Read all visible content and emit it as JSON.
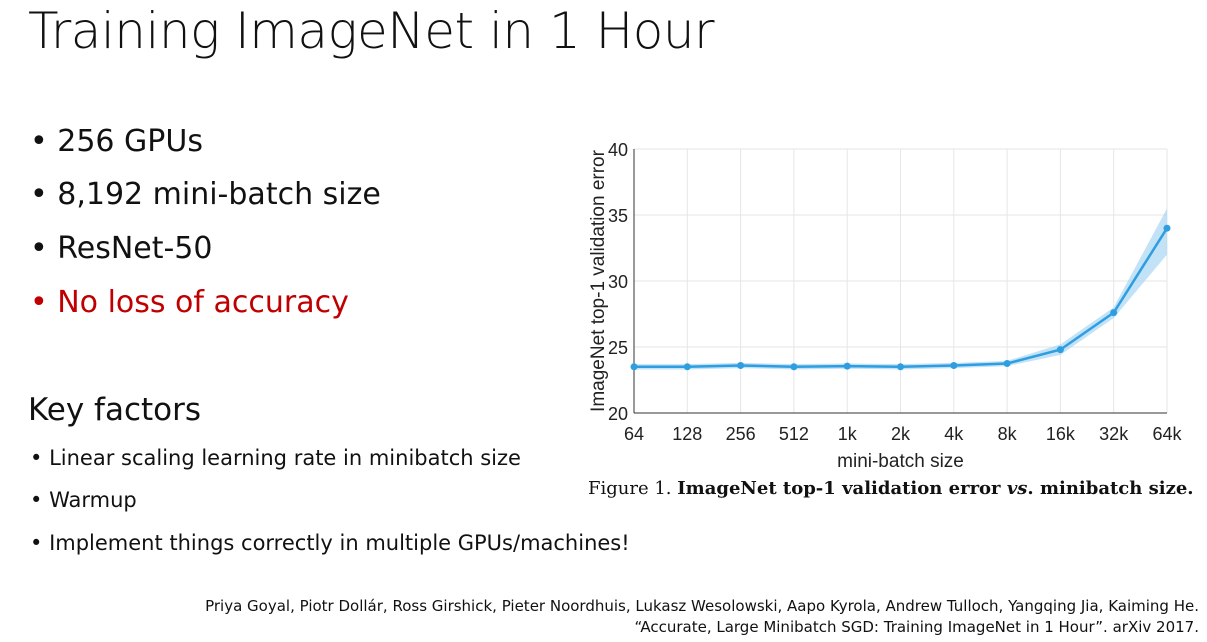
{
  "title": "Training ImageNet in 1 Hour",
  "bullets": [
    "256 GPUs",
    "8,192 mini-batch size",
    "ResNet-50",
    "No loss of accuracy"
  ],
  "highlight_color": "#c00000",
  "key_factors": {
    "heading": "Key factors",
    "items": [
      "Linear scaling learning rate in minibatch size",
      "Warmup",
      "Implement things correctly in multiple GPUs/machines!"
    ]
  },
  "caption": {
    "prefix": "Figure 1. ",
    "bold": "ImageNet top-1 validation error ",
    "italic": "vs",
    "suffix": ". minibatch size."
  },
  "footer": {
    "authors": "Priya Goyal, Piotr Dollár, Ross Girshick, Pieter Noordhuis, Lukasz Wesolowski, Aapo Kyrola, Andrew Tulloch, Yangqing Jia, Kaiming He.",
    "citation": "“Accurate, Large Minibatch SGD: Training ImageNet in 1 Hour”. arXiv 2017."
  },
  "chart_data": {
    "type": "line",
    "xlabel": "mini-batch size",
    "ylabel": "ImageNet top-1 validation error",
    "categories": [
      "64",
      "128",
      "256",
      "512",
      "1k",
      "2k",
      "4k",
      "8k",
      "16k",
      "32k",
      "64k"
    ],
    "values": [
      23.5,
      23.5,
      23.6,
      23.5,
      23.55,
      23.5,
      23.6,
      23.75,
      24.8,
      27.6,
      34.0
    ],
    "band_lower": [
      23.3,
      23.3,
      23.4,
      23.3,
      23.35,
      23.3,
      23.4,
      23.55,
      24.4,
      27.2,
      32.0
    ],
    "band_upper": [
      23.7,
      23.7,
      23.8,
      23.7,
      23.75,
      23.7,
      23.8,
      23.95,
      25.2,
      28.0,
      35.5
    ],
    "ylim": [
      20,
      40
    ],
    "yticks": [
      20,
      25,
      30,
      35,
      40
    ],
    "grid": true,
    "color": "#2f9ee0",
    "band_color": "#a8d5f3"
  }
}
